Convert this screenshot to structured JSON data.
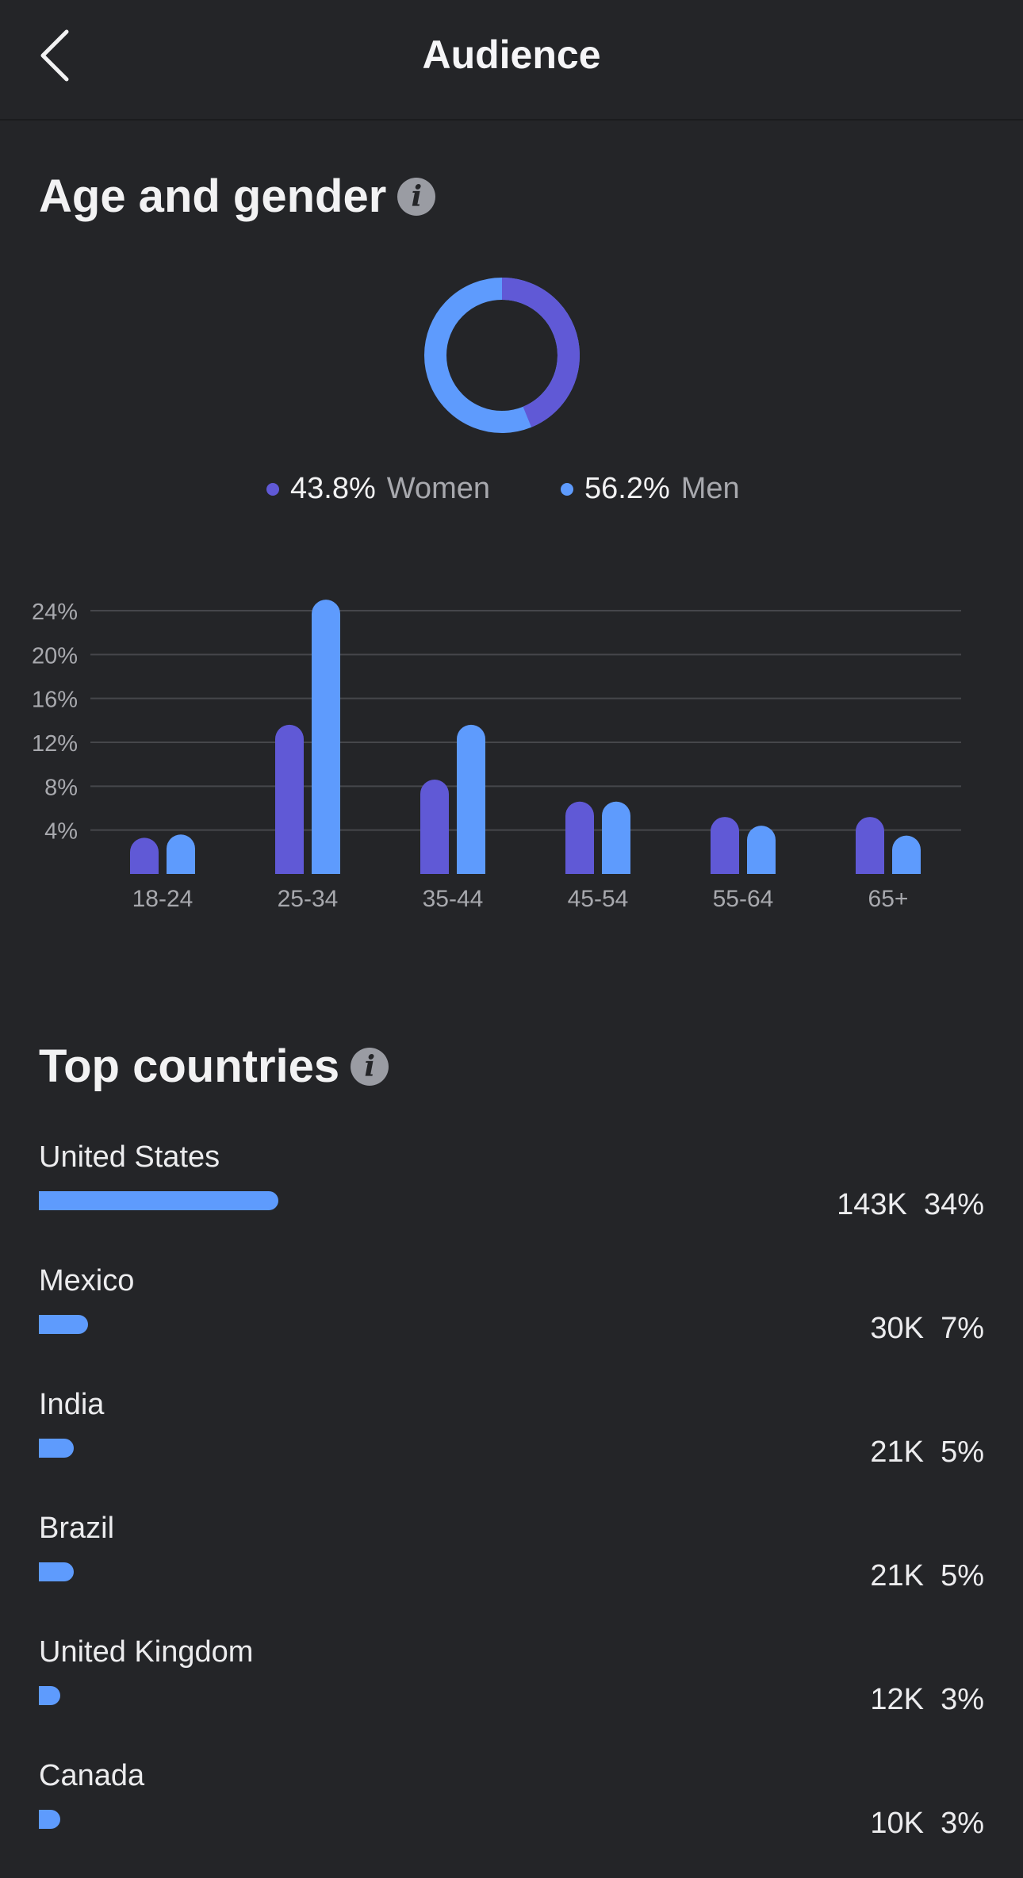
{
  "header": {
    "title": "Audience"
  },
  "age_gender": {
    "title": "Age and gender",
    "colors": {
      "women": "#6059d6",
      "men": "#5e9bfd"
    },
    "legend": [
      {
        "pct": "43.8%",
        "label": "Women"
      },
      {
        "pct": "56.2%",
        "label": "Men"
      }
    ]
  },
  "chart_data": [
    {
      "type": "pie",
      "labels": [
        "Women",
        "Men"
      ],
      "values": [
        43.8,
        56.2
      ],
      "colors": [
        "#6059d6",
        "#5e9bfd"
      ]
    },
    {
      "type": "bar",
      "categories": [
        "18-24",
        "25-34",
        "35-44",
        "45-54",
        "55-64",
        "65+"
      ],
      "series": [
        {
          "name": "Women",
          "values": [
            3.3,
            13.6,
            8.6,
            6.6,
            5.2,
            5.2
          ]
        },
        {
          "name": "Men",
          "values": [
            3.6,
            25.0,
            13.6,
            6.6,
            4.4,
            3.5
          ]
        }
      ],
      "yticks": [
        "4%",
        "8%",
        "12%",
        "16%",
        "20%",
        "24%"
      ],
      "ytick_values": [
        4,
        8,
        12,
        16,
        20,
        24
      ],
      "ylim": [
        0,
        24
      ],
      "grid": true
    }
  ],
  "countries": {
    "title": "Top countries",
    "items": [
      {
        "name": "United States",
        "count": "143K",
        "pct": "34%",
        "share": 0.34
      },
      {
        "name": "Mexico",
        "count": "30K",
        "pct": "7%",
        "share": 0.07
      },
      {
        "name": "India",
        "count": "21K",
        "pct": "5%",
        "share": 0.05
      },
      {
        "name": "Brazil",
        "count": "21K",
        "pct": "5%",
        "share": 0.05
      },
      {
        "name": "United Kingdom",
        "count": "12K",
        "pct": "3%",
        "share": 0.03
      },
      {
        "name": "Canada",
        "count": "10K",
        "pct": "3%",
        "share": 0.03
      }
    ]
  }
}
